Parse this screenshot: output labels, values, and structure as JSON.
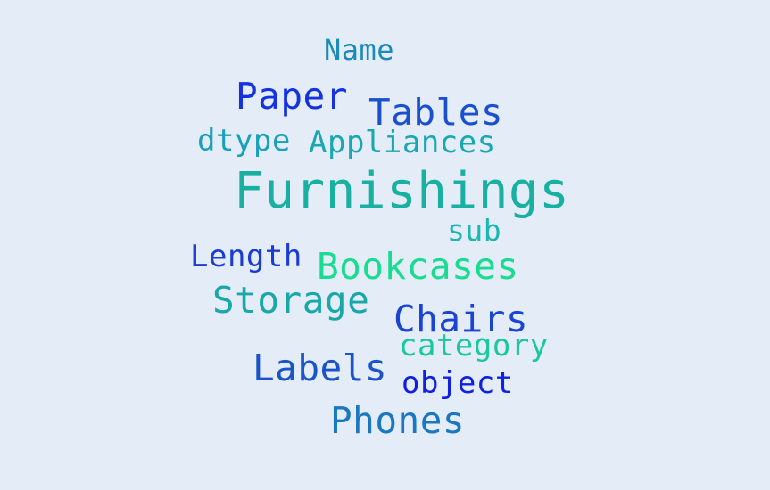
{
  "words": [
    {
      "text": "Name",
      "color": "#1a8ab8"
    },
    {
      "text": "Paper",
      "color": "#1432e0"
    },
    {
      "text": "Tables",
      "color": "#1a4fcf"
    },
    {
      "text": "dtype",
      "color": "#1aa0b8"
    },
    {
      "text": "Appliances",
      "color": "#1aa8b0"
    },
    {
      "text": "Furnishings",
      "color": "#18b0a0"
    },
    {
      "text": "sub",
      "color": "#1ab8b0"
    },
    {
      "text": "Length",
      "color": "#1a3cd0"
    },
    {
      "text": "Bookcases",
      "color": "#1adc90"
    },
    {
      "text": "Storage",
      "color": "#18a8a8"
    },
    {
      "text": "Chairs",
      "color": "#1a44d4"
    },
    {
      "text": "category",
      "color": "#1ac8a0"
    },
    {
      "text": "Labels",
      "color": "#1a54c8"
    },
    {
      "text": "object",
      "color": "#1020e0"
    },
    {
      "text": "Phones",
      "color": "#1a78c0"
    }
  ]
}
